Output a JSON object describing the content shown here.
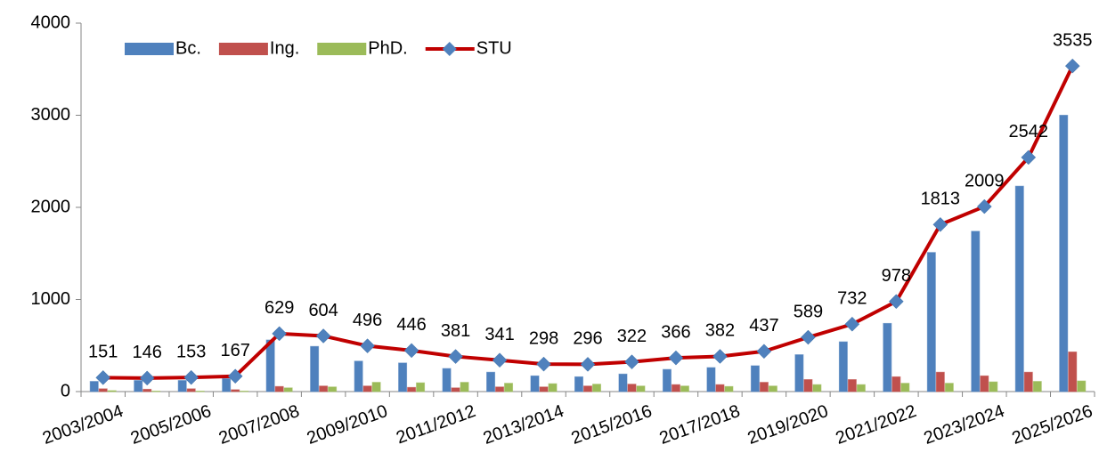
{
  "chart_data": {
    "type": "bar",
    "categories": [
      "2003/2004",
      null,
      "2005/2006",
      null,
      "2007/2008",
      null,
      "2009/2010",
      null,
      "2011/2012",
      null,
      "2013/2014",
      null,
      "2015/2016",
      null,
      "2017/2018",
      null,
      "2019/2020",
      null,
      "2021/2022",
      null,
      "2023/2024",
      null,
      "2025/2026"
    ],
    "series": [
      {
        "name": "Bc.",
        "color": "#4f81bd",
        "values": [
          110,
          120,
          120,
          140,
          560,
          490,
          330,
          310,
          250,
          210,
          170,
          160,
          190,
          240,
          260,
          280,
          400,
          540,
          740,
          1510,
          1740,
          2230,
          3000
        ]
      },
      {
        "name": "Ing.",
        "color": "#c0504d",
        "values": [
          30,
          25,
          30,
          20,
          55,
          60,
          60,
          45,
          40,
          50,
          50,
          60,
          80,
          75,
          75,
          100,
          130,
          130,
          160,
          210,
          170,
          210,
          430
        ]
      },
      {
        "name": "PhD.",
        "color": "#9bbb59",
        "values": [
          10,
          5,
          5,
          5,
          40,
          50,
          100,
          95,
          100,
          90,
          85,
          80,
          60,
          60,
          55,
          60,
          75,
          75,
          90,
          90,
          105,
          110,
          115
        ]
      },
      {
        "name": "STU",
        "type": "line",
        "color": "#c00000",
        "marker_color": "#4f81bd",
        "values": [
          151,
          146,
          153,
          167,
          629,
          604,
          496,
          446,
          381,
          341,
          298,
          296,
          322,
          366,
          382,
          437,
          589,
          732,
          978,
          1813,
          2009,
          2542,
          3535
        ]
      }
    ],
    "ylim": [
      0,
      4000
    ],
    "yticks": [
      0,
      1000,
      2000,
      3000,
      4000
    ],
    "grid": false,
    "legend": "top-left"
  }
}
